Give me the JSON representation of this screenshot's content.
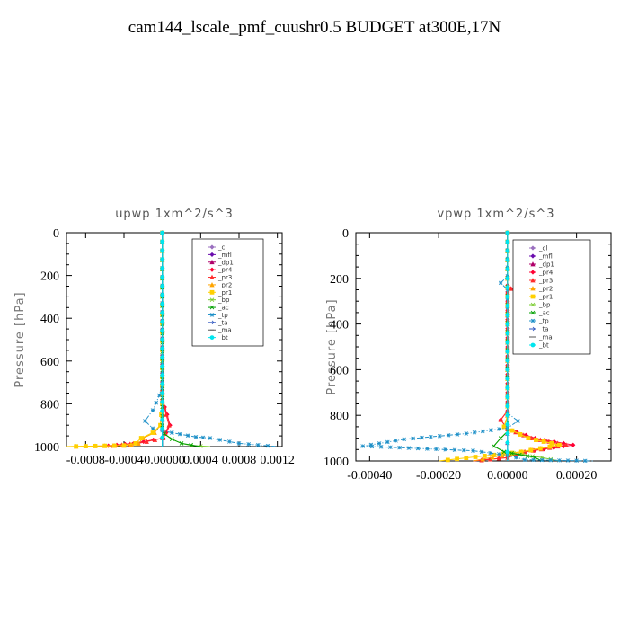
{
  "figure_title": "cam144_lscale_pmf_cuushr0.5  BUDGET at300E,17N",
  "chart_data": [
    {
      "type": "line",
      "title": "upwp   1xm^2/s^3",
      "xlabel": "",
      "ylabel": "Pressure [hPa]",
      "xlim": [
        -0.001,
        0.00125
      ],
      "ylim": [
        1000,
        0
      ],
      "xticks": [
        -0.0008,
        -0.0004,
        0.0,
        0.0004,
        0.0008,
        0.0012
      ],
      "xtick_labels": [
        "-0.0008",
        "-0.0004",
        "-0.00000",
        "0.0004",
        "0.0008",
        "0.0012"
      ],
      "yticks": [
        0,
        200,
        400,
        600,
        800,
        1000
      ],
      "ytick_labels": [
        "0",
        "200",
        "400",
        "600",
        "800",
        "1000"
      ],
      "legend_position": "top-right",
      "series": [
        {
          "name": "_cl",
          "color": "#9a6fbf",
          "marker": "diamond",
          "points": [
            [
              0,
              0
            ],
            [
              0,
              1000
            ]
          ]
        },
        {
          "name": "_mfl",
          "color": "#6a0dad",
          "marker": "diamond",
          "points": [
            [
              0,
              0
            ],
            [
              0,
              1000
            ]
          ]
        },
        {
          "name": "_dp1",
          "color": "#b0006a",
          "marker": "triangle",
          "points": [
            [
              0,
              0
            ],
            [
              0,
              1000
            ]
          ]
        },
        {
          "name": "_pr4",
          "color": "#ff0033",
          "marker": "diamond",
          "points": [
            [
              0,
              0
            ],
            [
              0,
              780
            ],
            [
              5e-05,
              850
            ],
            [
              8e-05,
              900
            ],
            [
              4e-05,
              935
            ],
            [
              1e-05,
              960
            ],
            [
              -0.0003,
              985
            ],
            [
              -0.00065,
              1000
            ]
          ]
        },
        {
          "name": "_pr3",
          "color": "#ff2d2d",
          "marker": "triangle",
          "points": [
            [
              0,
              0
            ],
            [
              0,
              780
            ],
            [
              4e-05,
              850
            ],
            [
              7e-05,
              900
            ],
            [
              3e-05,
              935
            ],
            [
              1e-05,
              960
            ],
            [
              -0.00025,
              985
            ],
            [
              -0.0006,
              1000
            ]
          ]
        },
        {
          "name": "_pr2",
          "color": "#ffa500",
          "marker": "triangle",
          "points": [
            [
              0,
              0
            ],
            [
              0,
              800
            ],
            [
              -2e-05,
              900
            ],
            [
              -8e-05,
              935
            ],
            [
              -0.0002,
              960
            ],
            [
              -0.00025,
              985
            ],
            [
              -0.0004,
              995
            ],
            [
              -0.001,
              1000
            ]
          ]
        },
        {
          "name": "_pr1",
          "color": "#ffd000",
          "marker": "square",
          "points": [
            [
              0,
              0
            ],
            [
              0,
              800
            ],
            [
              -2e-05,
              900
            ],
            [
              -0.0001,
              935
            ],
            [
              -0.00022,
              960
            ],
            [
              -0.00028,
              985
            ],
            [
              -0.0004,
              995
            ],
            [
              -0.001,
              1000
            ]
          ]
        },
        {
          "name": "_bp",
          "color": "#7acc30",
          "marker": "cross",
          "points": [
            [
              0,
              0
            ],
            [
              0,
              900
            ],
            [
              2e-05,
              940
            ],
            [
              0.0001,
              965
            ],
            [
              0.0002,
              985
            ],
            [
              0.0003,
              995
            ],
            [
              0.0005,
              1000
            ]
          ]
        },
        {
          "name": "_ac",
          "color": "#00a000",
          "marker": "cross",
          "points": [
            [
              0,
              0
            ],
            [
              0,
              900
            ],
            [
              2e-05,
              940
            ],
            [
              0.0001,
              965
            ],
            [
              0.0002,
              985
            ],
            [
              0.0004,
              1000
            ]
          ]
        },
        {
          "name": "_tp",
          "color": "#1e90c8",
          "marker": "star",
          "points": [
            [
              0,
              0
            ],
            [
              0,
              700
            ],
            [
              -3e-05,
              760
            ],
            [
              -0.0001,
              830
            ],
            [
              -0.00018,
              880
            ],
            [
              -0.0001,
              915
            ],
            [
              0.0001,
              935
            ],
            [
              0.00035,
              955
            ],
            [
              0.0005,
              960
            ],
            [
              0.0008,
              985
            ],
            [
              0.0012,
              1000
            ]
          ]
        },
        {
          "name": "_ta",
          "color": "#2a52be",
          "marker": "arrow",
          "points": [
            [
              0,
              0
            ],
            [
              0,
              1000
            ]
          ]
        },
        {
          "name": "_ma",
          "color": "#555555",
          "marker": "dash",
          "points": [
            [
              0,
              0
            ],
            [
              0,
              1000
            ]
          ]
        },
        {
          "name": "_bt",
          "color": "#00e5ee",
          "marker": "circle",
          "points": [
            [
              0,
              0
            ],
            [
              0,
              1000
            ]
          ]
        }
      ]
    },
    {
      "type": "line",
      "title": "vpwp   1xm^2/s^3",
      "xlabel": "",
      "ylabel": "Pressure [hPa]",
      "xlim": [
        -0.00044,
        0.0003
      ],
      "ylim": [
        1000,
        0
      ],
      "xticks": [
        -0.0004,
        -0.0002,
        0.0,
        0.0002
      ],
      "xtick_labels": [
        "-0.00040",
        "-0.00020",
        "0.00000",
        "0.00020"
      ],
      "yticks": [
        0,
        200,
        400,
        600,
        800,
        1000
      ],
      "ytick_labels": [
        "0",
        "200",
        "400",
        "600",
        "800",
        "1000"
      ],
      "legend_position": "top-right",
      "series": [
        {
          "name": "_cl",
          "color": "#9a6fbf",
          "marker": "diamond",
          "points": [
            [
              0,
              0
            ],
            [
              0,
              1000
            ]
          ]
        },
        {
          "name": "_mfl",
          "color": "#6a0dad",
          "marker": "diamond",
          "points": [
            [
              0,
              0
            ],
            [
              0,
              1000
            ]
          ]
        },
        {
          "name": "_dp1",
          "color": "#b0006a",
          "marker": "triangle",
          "points": [
            [
              0,
              0
            ],
            [
              0,
              1000
            ]
          ]
        },
        {
          "name": "_pr4",
          "color": "#ff0033",
          "marker": "diamond",
          "points": [
            [
              0,
              0
            ],
            [
              0,
              230
            ],
            [
              1e-05,
              245
            ],
            [
              0,
              260
            ],
            [
              0,
              780
            ],
            [
              -2e-05,
              820
            ],
            [
              0,
              860
            ],
            [
              8e-05,
              900
            ],
            [
              0.00019,
              930
            ],
            [
              5e-05,
              960
            ],
            [
              0,
              985
            ],
            [
              -0.0001,
              1000
            ]
          ]
        },
        {
          "name": "_pr3",
          "color": "#ff2d2d",
          "marker": "triangle",
          "points": [
            [
              0,
              0
            ],
            [
              0,
              230
            ],
            [
              1e-05,
              245
            ],
            [
              0,
              260
            ],
            [
              0,
              780
            ],
            [
              -2e-05,
              820
            ],
            [
              0,
              860
            ],
            [
              7e-05,
              900
            ],
            [
              0.00017,
              930
            ],
            [
              5e-05,
              960
            ],
            [
              0,
              985
            ],
            [
              -0.0001,
              1000
            ]
          ]
        },
        {
          "name": "_pr2",
          "color": "#ffa500",
          "marker": "triangle",
          "points": [
            [
              0,
              0
            ],
            [
              0,
              800
            ],
            [
              -1e-05,
              850
            ],
            [
              6e-05,
              900
            ],
            [
              0.00015,
              930
            ],
            [
              4e-05,
              960
            ],
            [
              -0.0001,
              1000
            ]
          ]
        },
        {
          "name": "_pr1",
          "color": "#ffd000",
          "marker": "square",
          "points": [
            [
              0,
              0
            ],
            [
              0,
              800
            ],
            [
              -1e-05,
              850
            ],
            [
              6e-05,
              900
            ],
            [
              0.00015,
              930
            ],
            [
              4e-05,
              960
            ],
            [
              -0.0002,
              1000
            ]
          ]
        },
        {
          "name": "_bp",
          "color": "#7acc30",
          "marker": "cross",
          "points": [
            [
              0,
              0
            ],
            [
              0,
              870
            ],
            [
              -2e-05,
              900
            ],
            [
              -4e-05,
              935
            ],
            [
              -1e-05,
              960
            ],
            [
              0.0001,
              985
            ],
            [
              0.00015,
              1000
            ]
          ]
        },
        {
          "name": "_ac",
          "color": "#00a000",
          "marker": "cross",
          "points": [
            [
              0,
              0
            ],
            [
              0,
              870
            ],
            [
              -2e-05,
              900
            ],
            [
              -4e-05,
              935
            ],
            [
              -1e-05,
              960
            ],
            [
              8e-05,
              985
            ],
            [
              0.0001,
              1000
            ]
          ]
        },
        {
          "name": "_tp",
          "color": "#1e90c8",
          "marker": "star",
          "points": [
            [
              0,
              0
            ],
            [
              0,
              190
            ],
            [
              -2e-05,
              220
            ],
            [
              0,
              250
            ],
            [
              0,
              790
            ],
            [
              3e-05,
              825
            ],
            [
              0,
              855
            ],
            [
              -0.00012,
              880
            ],
            [
              -0.0003,
              905
            ],
            [
              -0.00042,
              935
            ],
            [
              -0.0001,
              955
            ],
            [
              0,
              975
            ],
            [
              5e-05,
              995
            ],
            [
              0.00025,
              1000
            ]
          ]
        },
        {
          "name": "_ta",
          "color": "#2a52be",
          "marker": "arrow",
          "points": [
            [
              0,
              0
            ],
            [
              0,
              1000
            ]
          ]
        },
        {
          "name": "_ma",
          "color": "#555555",
          "marker": "dash",
          "points": [
            [
              0,
              0
            ],
            [
              0,
              1000
            ]
          ]
        },
        {
          "name": "_bt",
          "color": "#00e5ee",
          "marker": "circle",
          "points": [
            [
              0,
              0
            ],
            [
              0,
              1000
            ]
          ]
        }
      ]
    }
  ]
}
